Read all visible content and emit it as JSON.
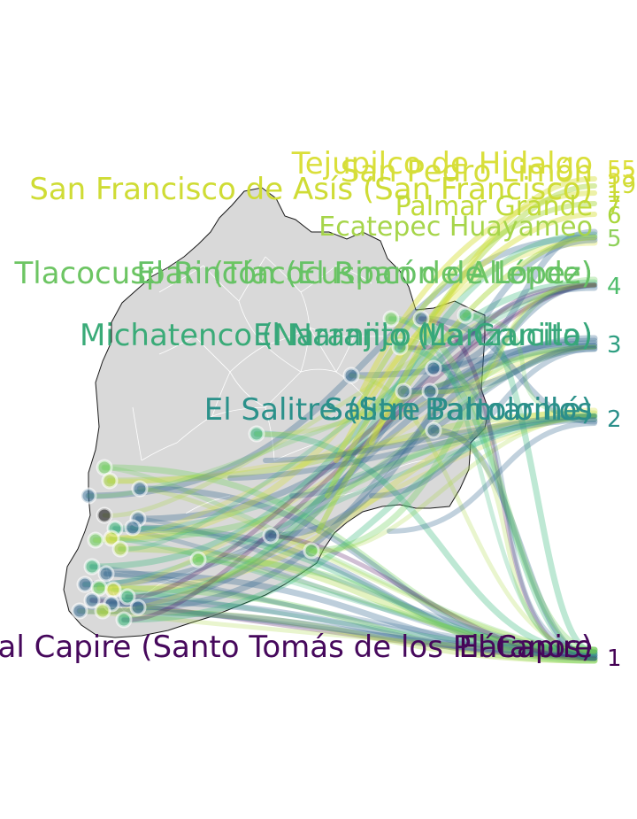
{
  "map": {
    "region_fill": "#d9d9d9",
    "border_color": "#ffffff",
    "outline_color": "#1a1a1a"
  },
  "palette": [
    "#440154",
    "#31688e",
    "#35b779",
    "#6ccf5a",
    "#a8d63a",
    "#d8e03b"
  ],
  "rank_labels": [
    {
      "text": "1",
      "color": "#440154"
    },
    {
      "text": "2",
      "color": "#2a8f8a"
    },
    {
      "text": "3",
      "color": "#2d9e80"
    },
    {
      "text": "4",
      "color": "#4fbd6c"
    },
    {
      "text": "5",
      "color": "#8fd15a"
    },
    {
      "text": "6",
      "color": "#a8d63a"
    },
    {
      "text": "7",
      "color": "#bcd936"
    },
    {
      "text": "1",
      "color": "#c7da34"
    },
    {
      "text": "19",
      "color": "#cfdc35"
    },
    {
      "text": "53",
      "color": "#d6dd36"
    },
    {
      "text": "55",
      "color": "#dcde38"
    }
  ],
  "place_labels": [
    {
      "text": "Tejupilco de Hidalgo",
      "color": "#dadf3a"
    },
    {
      "text": "San Pedro Limón",
      "color": "#d5de3a"
    },
    {
      "text": "San Francisco de Asís (San Francisco)",
      "color": "#cfdc35"
    },
    {
      "text": "Palmar Grande",
      "color": "#c0db39"
    },
    {
      "text": "Ecatepec Huayameo",
      "color": "#a6d54a"
    },
    {
      "text": "Tlacocuspan (Tlacocuspan de Allende)",
      "color": "#6dc563"
    },
    {
      "text": "El Rincón (El Rincón de López)",
      "color": "#66c266"
    },
    {
      "text": "Michatenco (Naranjito Manzanillo)",
      "color": "#3aab78"
    },
    {
      "text": "El Naranjo (La Crucita)",
      "color": "#36a67b"
    },
    {
      "text": "Salitre Palmarillos",
      "color": "#2a8d8a"
    },
    {
      "text": "El Salitre (San Bartolomé)",
      "color": "#2b918a"
    },
    {
      "text": "El Capire",
      "color": "#440154"
    },
    {
      "text": "Real Capire (Santo Tomás de los Plátanos)",
      "color": "#46085c"
    }
  ]
}
